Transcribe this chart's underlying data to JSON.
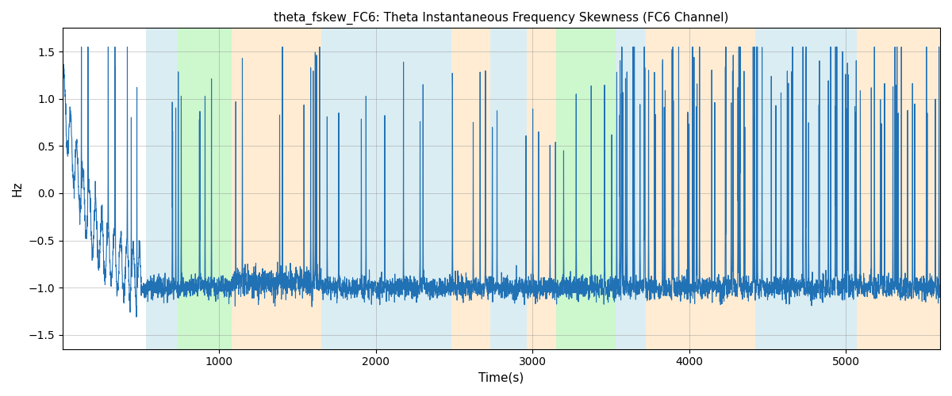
{
  "title": "theta_fskew_FC6: Theta Instantaneous Frequency Skewness (FC6 Channel)",
  "xlabel": "Time(s)",
  "ylabel": "Hz",
  "xlim": [
    0,
    5600
  ],
  "ylim": [
    -1.65,
    1.75
  ],
  "yticks": [
    -1.5,
    -1.0,
    -0.5,
    0.0,
    0.5,
    1.0,
    1.5
  ],
  "xticks": [
    1000,
    2000,
    3000,
    4000,
    5000
  ],
  "line_color": "#2171b5",
  "line_width": 0.8,
  "grid": true,
  "figsize": [
    12,
    5
  ],
  "dpi": 100,
  "background_color": "white",
  "regions": [
    {
      "xmin": 530,
      "xmax": 730,
      "color": "#add8e6",
      "alpha": 0.45
    },
    {
      "xmin": 730,
      "xmax": 1080,
      "color": "#90ee90",
      "alpha": 0.45
    },
    {
      "xmin": 1080,
      "xmax": 1650,
      "color": "#ffd59e",
      "alpha": 0.45
    },
    {
      "xmin": 1650,
      "xmax": 2480,
      "color": "#add8e6",
      "alpha": 0.45
    },
    {
      "xmin": 2480,
      "xmax": 2730,
      "color": "#ffd59e",
      "alpha": 0.45
    },
    {
      "xmin": 2730,
      "xmax": 2960,
      "color": "#add8e6",
      "alpha": 0.45
    },
    {
      "xmin": 2960,
      "xmax": 3150,
      "color": "#ffd59e",
      "alpha": 0.45
    },
    {
      "xmin": 3150,
      "xmax": 3530,
      "color": "#90ee90",
      "alpha": 0.45
    },
    {
      "xmin": 3530,
      "xmax": 3720,
      "color": "#add8e6",
      "alpha": 0.45
    },
    {
      "xmin": 3720,
      "xmax": 4420,
      "color": "#ffd59e",
      "alpha": 0.45
    },
    {
      "xmin": 4420,
      "xmax": 5070,
      "color": "#add8e6",
      "alpha": 0.45
    },
    {
      "xmin": 5070,
      "xmax": 5600,
      "color": "#ffd59e",
      "alpha": 0.45
    }
  ],
  "seed": 42,
  "n_points": 5600,
  "t_start": 0,
  "t_end": 5600
}
